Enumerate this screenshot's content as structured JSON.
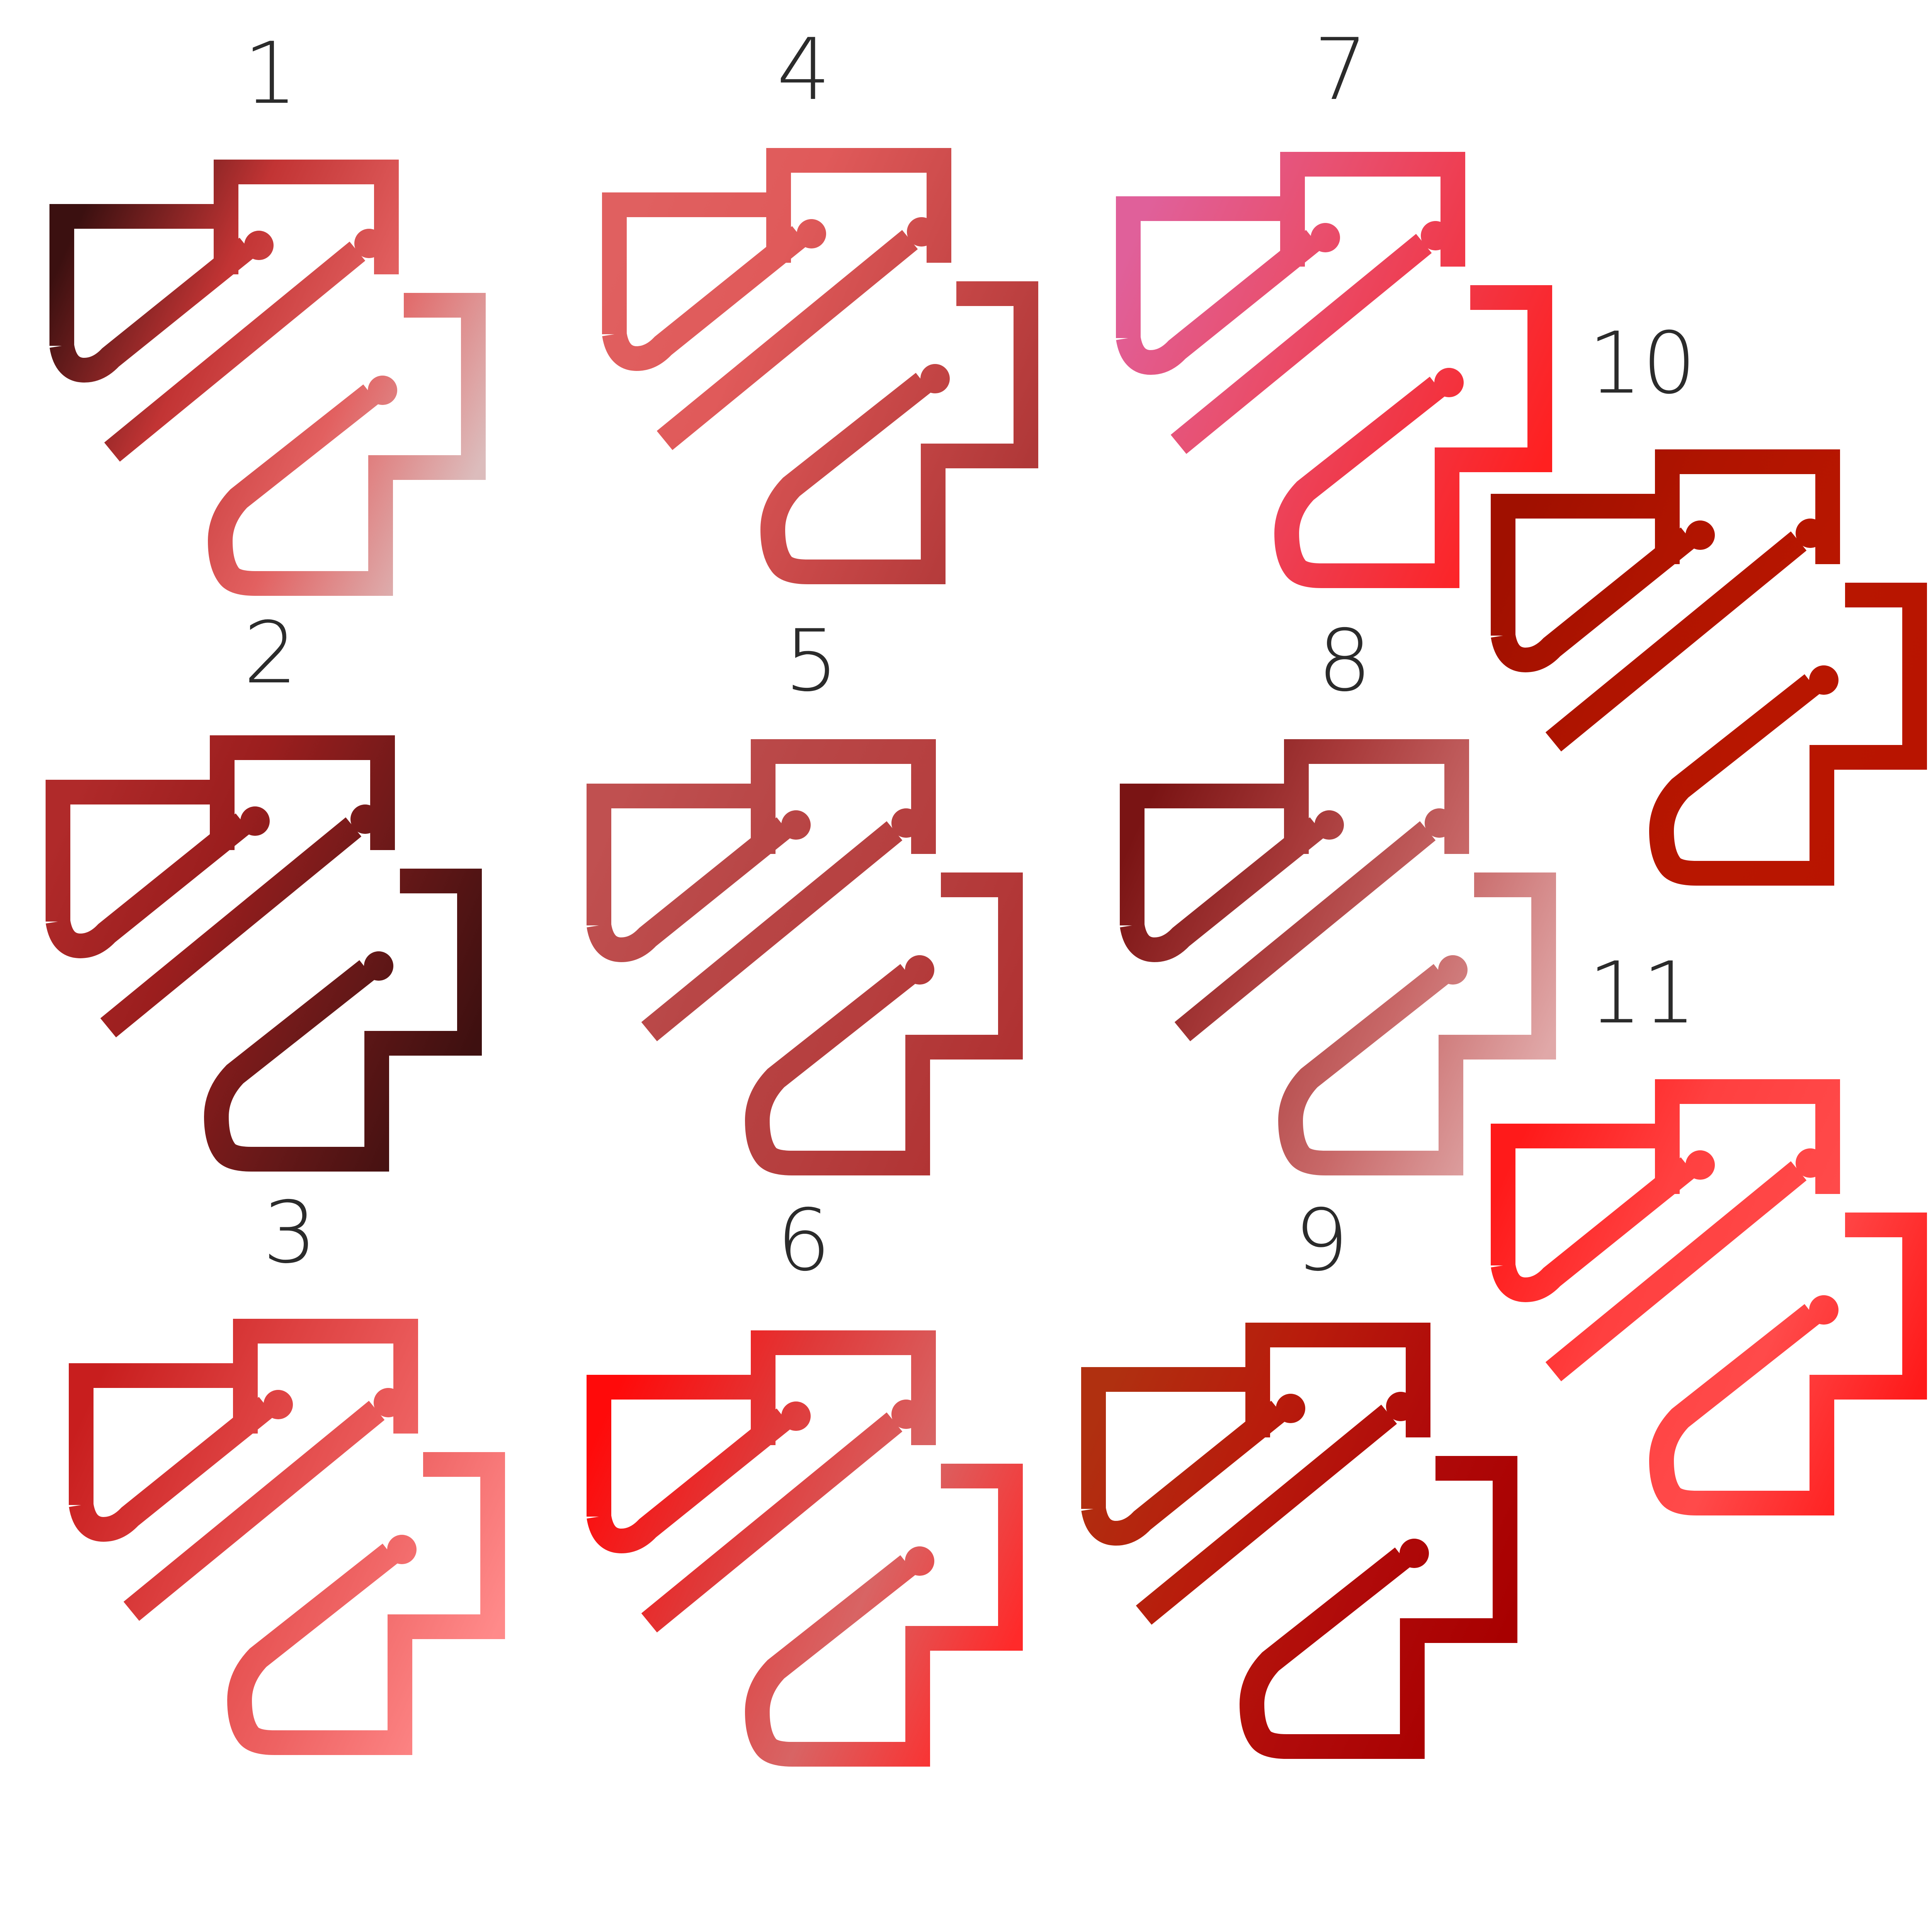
{
  "variants": [
    {
      "label": "1",
      "gradient": [
        "#3b1010",
        "#c23434",
        "#e26060",
        "#dcbcbc"
      ]
    },
    {
      "label": "2",
      "gradient": [
        "#b02a2a",
        "#9b1e1e",
        "#6b1919",
        "#3e1010"
      ]
    },
    {
      "label": "3",
      "gradient": [
        "#c81e1e",
        "#dd4040",
        "#ee6262",
        "#ff8a8a"
      ]
    },
    {
      "label": "4",
      "gradient": [
        "#e06060",
        "#e05a5a",
        "#c84848",
        "#b03838"
      ]
    },
    {
      "label": "5",
      "gradient": [
        "#c05050",
        "#b84646",
        "#b63e3e",
        "#b03232"
      ]
    },
    {
      "label": "6",
      "gradient": [
        "#ff0a0a",
        "#e03838",
        "#d86464",
        "#ff2a2a"
      ]
    },
    {
      "label": "7",
      "gradient": [
        "#e0609a",
        "#e85070",
        "#f03848",
        "#ff2020"
      ]
    },
    {
      "label": "8",
      "gradient": [
        "#7a1414",
        "#a83a3a",
        "#c86868",
        "#e0a8a8"
      ]
    },
    {
      "label": "9",
      "gradient": [
        "#b03010",
        "#b81c0c",
        "#b00a0a",
        "#a80000"
      ]
    },
    {
      "label": "10",
      "gradient": [
        "#a01000",
        "#b01400",
        "#b81600",
        "#b81400"
      ]
    },
    {
      "label": "11",
      "gradient": [
        "#ff1a1a",
        "#ff4040",
        "#ff4a4a",
        "#ff1a1a"
      ]
    }
  ]
}
